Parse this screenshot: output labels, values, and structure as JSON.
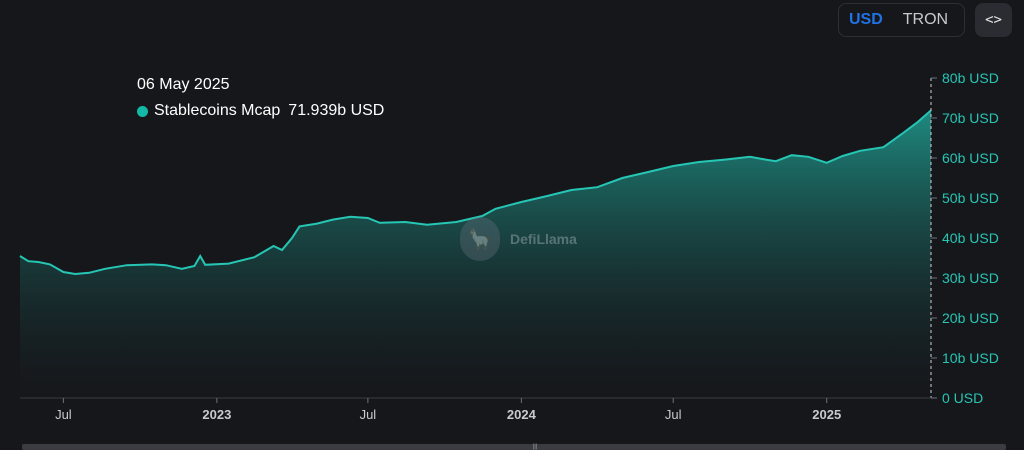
{
  "toggle": {
    "usd": "USD",
    "tron": "TRON",
    "active": "USD"
  },
  "embed_button": {
    "label": "<>",
    "icon": "code-embed-icon"
  },
  "tooltip": {
    "date": "06 May 2025",
    "series": "Stablecoins Mcap",
    "value": "71.939b USD",
    "color": "#14b8a6"
  },
  "watermark": {
    "label": "DefiLlama",
    "icon": "llama-logo-icon"
  },
  "colors": {
    "line": "#26c6b5",
    "background": "#16171b",
    "axis_text": "#26c6b5",
    "x_axis_text": "#c8cad0"
  },
  "chart_data": {
    "type": "area",
    "title": "",
    "xlabel": "",
    "ylabel": "",
    "ylim": [
      0,
      80
    ],
    "y_unit": "b USD",
    "y_ticks": [
      "0 USD",
      "10b USD",
      "20b USD",
      "30b USD",
      "40b USD",
      "50b USD",
      "60b USD",
      "70b USD",
      "80b USD"
    ],
    "x_ticks": [
      {
        "label": "Jul",
        "date": "2022-07-01",
        "bold": false
      },
      {
        "label": "2023",
        "date": "2023-01-01",
        "bold": true
      },
      {
        "label": "Jul",
        "date": "2023-07-01",
        "bold": false
      },
      {
        "label": "2024",
        "date": "2024-01-01",
        "bold": true
      },
      {
        "label": "Jul",
        "date": "2024-07-01",
        "bold": false
      },
      {
        "label": "2025",
        "date": "2025-01-01",
        "bold": true
      }
    ],
    "x_range": [
      "2022-05-10",
      "2025-05-06"
    ],
    "grid": false,
    "legend": "none",
    "series": [
      {
        "name": "Stablecoins Mcap",
        "points": [
          [
            "2022-05-10",
            35.5
          ],
          [
            "2022-05-20",
            34.2
          ],
          [
            "2022-06-01",
            34.0
          ],
          [
            "2022-06-15",
            33.4
          ],
          [
            "2022-07-01",
            31.5
          ],
          [
            "2022-07-15",
            31.0
          ],
          [
            "2022-08-01",
            31.3
          ],
          [
            "2022-08-20",
            32.3
          ],
          [
            "2022-09-15",
            33.2
          ],
          [
            "2022-10-15",
            33.4
          ],
          [
            "2022-11-01",
            33.2
          ],
          [
            "2022-11-20",
            32.3
          ],
          [
            "2022-12-05",
            33.0
          ],
          [
            "2022-12-12",
            35.5
          ],
          [
            "2022-12-18",
            33.3
          ],
          [
            "2023-01-15",
            33.6
          ],
          [
            "2023-02-15",
            35.2
          ],
          [
            "2023-03-10",
            38.0
          ],
          [
            "2023-03-20",
            37.0
          ],
          [
            "2023-04-01",
            40.0
          ],
          [
            "2023-04-10",
            42.9
          ],
          [
            "2023-05-01",
            43.6
          ],
          [
            "2023-05-20",
            44.6
          ],
          [
            "2023-06-10",
            45.3
          ],
          [
            "2023-07-01",
            45.0
          ],
          [
            "2023-07-15",
            43.8
          ],
          [
            "2023-08-15",
            44.0
          ],
          [
            "2023-09-10",
            43.3
          ],
          [
            "2023-10-15",
            44.0
          ],
          [
            "2023-11-15",
            45.5
          ],
          [
            "2023-12-01",
            47.3
          ],
          [
            "2024-01-01",
            49.0
          ],
          [
            "2024-02-01",
            50.5
          ],
          [
            "2024-03-01",
            52.0
          ],
          [
            "2024-04-01",
            52.7
          ],
          [
            "2024-05-01",
            55.0
          ],
          [
            "2024-06-01",
            56.5
          ],
          [
            "2024-07-01",
            58.0
          ],
          [
            "2024-08-01",
            59.0
          ],
          [
            "2024-09-01",
            59.6
          ],
          [
            "2024-10-01",
            60.3
          ],
          [
            "2024-10-20",
            59.6
          ],
          [
            "2024-11-01",
            59.2
          ],
          [
            "2024-11-20",
            60.7
          ],
          [
            "2024-12-10",
            60.3
          ],
          [
            "2025-01-01",
            58.8
          ],
          [
            "2025-01-20",
            60.5
          ],
          [
            "2025-02-10",
            61.8
          ],
          [
            "2025-03-10",
            62.7
          ],
          [
            "2025-04-01",
            66.0
          ],
          [
            "2025-04-20",
            69.0
          ],
          [
            "2025-05-06",
            71.9
          ]
        ]
      }
    ]
  }
}
